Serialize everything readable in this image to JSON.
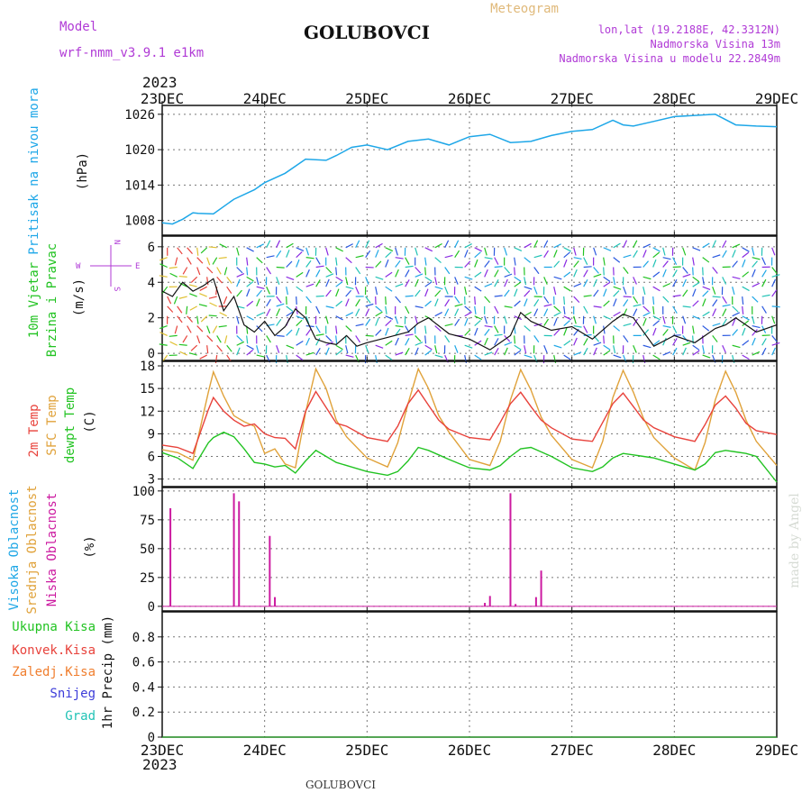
{
  "header": {
    "model_label": "Model",
    "model_name": "wrf-nmm_v3.9.1 e1km",
    "station": "GOLUBOVCI",
    "product": "Meteogram",
    "lonlat": "lon,lat (19.2188E, 42.3312N)",
    "elevation": "Nadmorska Visina 13m",
    "model_elevation": "Nadmorska Visina u modelu 22.2849m",
    "year": "2023"
  },
  "footer": {
    "station": "GOLUBOVCI",
    "credit": "made by Angel"
  },
  "colors": {
    "pressure": "#1ea7e8",
    "temp2m": "#e8423b",
    "sfc": "#e0a23a",
    "dewpt": "#22c322",
    "cloud_high": "#1fa7e6",
    "cloud_mid": "#e0a23a",
    "cloud_low": "#cc1aa0",
    "label_purple": "#b03ad6",
    "precip_total": "#22c322",
    "precip_conv": "#e8423b",
    "precip_frz": "#f07e2e",
    "precip_snow": "#3c3cd9",
    "precip_grad": "#22c3b6"
  },
  "compass": {
    "n": "N",
    "s": "S",
    "w": "W",
    "e": "E"
  },
  "chart_data": [
    {
      "type": "line",
      "x_ticks": [
        "23DEC",
        "24DEC",
        "25DEC",
        "26DEC",
        "27DEC",
        "28DEC",
        "29DEC"
      ],
      "ylabel": "(hPa)",
      "side_label": "Pritisak na nivou mora",
      "ylim": [
        1005.5,
        1027.5
      ],
      "yticks": [
        1008,
        1014,
        1020,
        1026
      ],
      "series": [
        {
          "name": "Pritisak na nivou mora",
          "x": [
            0,
            0.1,
            0.2,
            0.3,
            0.35,
            0.5,
            0.7,
            0.9,
            1.0,
            1.2,
            1.4,
            1.6,
            1.7,
            1.85,
            2.0,
            2.2,
            2.4,
            2.6,
            2.8,
            3.0,
            3.2,
            3.4,
            3.6,
            3.8,
            4.0,
            4.2,
            4.4,
            4.5,
            4.6,
            4.8,
            5.0,
            5.2,
            5.4,
            5.6,
            5.8,
            6.0
          ],
          "y": [
            1007.6,
            1007.4,
            1008.2,
            1009.3,
            1009.2,
            1009.1,
            1011.6,
            1013.2,
            1014.4,
            1016.0,
            1018.4,
            1018.2,
            1019.0,
            1020.4,
            1020.8,
            1020.0,
            1021.4,
            1021.8,
            1020.8,
            1022.2,
            1022.6,
            1021.2,
            1021.4,
            1022.4,
            1023.1,
            1023.4,
            1025.0,
            1024.2,
            1024.0,
            1024.8,
            1025.6,
            1025.8,
            1026.0,
            1024.2,
            1024.0,
            1023.9
          ]
        }
      ]
    },
    {
      "type": "line",
      "side_label_1": "10m Vjetar",
      "side_label_2": "Brzina i Pravac",
      "ylabel": "(m/s)",
      "ylim": [
        -0.4,
        6.6
      ],
      "yticks": [
        0,
        2,
        4,
        6
      ],
      "series": [
        {
          "name": "10m Vjetar",
          "x": [
            0,
            0.1,
            0.2,
            0.3,
            0.4,
            0.5,
            0.6,
            0.7,
            0.8,
            0.9,
            1.0,
            1.1,
            1.2,
            1.3,
            1.4,
            1.5,
            1.6,
            1.7,
            1.8,
            1.9,
            2.0,
            2.2,
            2.4,
            2.5,
            2.6,
            2.8,
            3.0,
            3.2,
            3.4,
            3.5,
            3.6,
            3.8,
            4.0,
            4.2,
            4.4,
            4.5,
            4.6,
            4.8,
            5.0,
            5.2,
            5.4,
            5.5,
            5.6,
            5.8,
            6.0
          ],
          "y": [
            3.5,
            3.2,
            4.0,
            3.5,
            3.8,
            4.2,
            2.4,
            3.2,
            1.6,
            1.2,
            1.8,
            1.0,
            1.5,
            2.5,
            2.0,
            0.8,
            0.6,
            0.5,
            1.0,
            0.4,
            0.6,
            0.9,
            1.2,
            1.7,
            2.0,
            1.1,
            0.8,
            0.2,
            1.0,
            2.3,
            1.8,
            1.3,
            1.5,
            0.8,
            1.8,
            2.2,
            2.0,
            0.4,
            1.0,
            0.6,
            1.4,
            1.6,
            2.0,
            1.2,
            1.6
          ]
        }
      ]
    },
    {
      "type": "line",
      "side_label_1": "2m Temp",
      "side_label_2": "SFC Temp",
      "side_label_3": "dewpt Temp",
      "ylabel": "(C)",
      "ylim": [
        2,
        18.6
      ],
      "yticks": [
        3,
        6,
        9,
        12,
        15,
        18
      ],
      "series": [
        {
          "name": "2m Temp",
          "x": [
            0,
            0.15,
            0.3,
            0.45,
            0.5,
            0.6,
            0.7,
            0.8,
            0.9,
            1.0,
            1.1,
            1.2,
            1.3,
            1.4,
            1.5,
            1.6,
            1.7,
            1.8,
            2.0,
            2.2,
            2.3,
            2.4,
            2.5,
            2.6,
            2.7,
            2.8,
            3.0,
            3.2,
            3.3,
            3.4,
            3.5,
            3.6,
            3.7,
            3.8,
            4.0,
            4.2,
            4.3,
            4.4,
            4.5,
            4.6,
            4.7,
            4.8,
            5.0,
            5.2,
            5.3,
            5.4,
            5.5,
            5.6,
            5.7,
            5.8,
            6.0
          ],
          "y": [
            7.5,
            7.2,
            6.4,
            12.2,
            13.8,
            12.0,
            10.8,
            10.0,
            10.3,
            9.0,
            8.5,
            8.4,
            7.0,
            12.0,
            14.6,
            12.5,
            10.4,
            10.0,
            8.5,
            8.0,
            10.0,
            13.0,
            14.8,
            12.8,
            10.8,
            9.6,
            8.5,
            8.2,
            10.5,
            13.0,
            14.5,
            12.6,
            10.8,
            9.8,
            8.3,
            8.0,
            10.5,
            13.0,
            14.4,
            12.6,
            10.8,
            9.8,
            8.6,
            8.0,
            10.2,
            12.8,
            14.0,
            12.4,
            10.4,
            9.4,
            8.9
          ]
        },
        {
          "name": "SFC Temp",
          "x": [
            0,
            0.15,
            0.3,
            0.45,
            0.5,
            0.6,
            0.7,
            0.8,
            0.9,
            1.0,
            1.1,
            1.2,
            1.3,
            1.4,
            1.5,
            1.6,
            1.7,
            1.8,
            2.0,
            2.2,
            2.3,
            2.4,
            2.5,
            2.6,
            2.7,
            2.8,
            3.0,
            3.2,
            3.3,
            3.4,
            3.5,
            3.6,
            3.7,
            3.8,
            4.0,
            4.2,
            4.3,
            4.4,
            4.5,
            4.6,
            4.7,
            4.8,
            5.0,
            5.2,
            5.3,
            5.4,
            5.5,
            5.6,
            5.7,
            5.8,
            6.0
          ],
          "y": [
            6.9,
            6.5,
            5.5,
            14.5,
            17.2,
            14.0,
            11.4,
            10.6,
            10.0,
            6.4,
            7.0,
            5.0,
            4.5,
            11.8,
            17.6,
            15.0,
            10.8,
            8.6,
            5.8,
            4.6,
            7.8,
            13.0,
            17.6,
            15.0,
            11.4,
            9.2,
            5.6,
            4.8,
            8.0,
            13.5,
            17.5,
            14.8,
            11.2,
            8.8,
            5.6,
            4.5,
            8.0,
            13.8,
            17.4,
            14.5,
            11.0,
            8.5,
            5.8,
            4.2,
            7.8,
            13.5,
            17.3,
            14.5,
            10.8,
            8.0,
            4.8
          ]
        },
        {
          "name": "dewpt Temp",
          "x": [
            0,
            0.15,
            0.3,
            0.45,
            0.5,
            0.6,
            0.7,
            0.8,
            0.9,
            1.0,
            1.1,
            1.2,
            1.3,
            1.4,
            1.5,
            1.6,
            1.7,
            1.8,
            2.0,
            2.2,
            2.3,
            2.4,
            2.5,
            2.6,
            2.7,
            2.8,
            3.0,
            3.2,
            3.3,
            3.4,
            3.5,
            3.6,
            3.7,
            3.8,
            4.0,
            4.2,
            4.3,
            4.4,
            4.5,
            4.6,
            4.7,
            4.8,
            5.0,
            5.2,
            5.3,
            5.4,
            5.5,
            5.6,
            5.7,
            5.8,
            6.0
          ],
          "y": [
            6.5,
            5.8,
            4.4,
            7.8,
            8.5,
            9.2,
            8.6,
            7.0,
            5.2,
            5.0,
            4.6,
            4.8,
            3.8,
            5.4,
            6.8,
            6.0,
            5.2,
            4.8,
            4.0,
            3.5,
            4.0,
            5.4,
            7.2,
            6.8,
            6.2,
            5.6,
            4.5,
            4.2,
            4.8,
            6.0,
            7.0,
            7.2,
            6.6,
            6.0,
            4.5,
            4.0,
            4.6,
            5.8,
            6.4,
            6.2,
            6.0,
            5.8,
            5.0,
            4.2,
            5.0,
            6.5,
            6.8,
            6.6,
            6.4,
            6.0,
            2.6
          ]
        }
      ]
    },
    {
      "type": "bar",
      "side_label_1": "Visoka Oblacnost",
      "side_label_2": "Srednja Oblacnost",
      "side_label_3": "Niska Oblacnost",
      "ylabel": "(%)",
      "ylim": [
        -4,
        103
      ],
      "yticks": [
        0,
        25,
        50,
        75,
        100
      ],
      "series": [
        {
          "name": "Niska Oblacnost",
          "x": [
            0.08,
            0.7,
            0.75,
            1.05,
            1.1,
            3.15,
            3.2,
            3.4,
            3.45,
            3.65,
            3.7
          ],
          "y": [
            85,
            98,
            91,
            61,
            8,
            3,
            9,
            98,
            2,
            8,
            31
          ]
        }
      ]
    },
    {
      "type": "line",
      "side_labels": [
        "Ukupna Kisa",
        "Konvek.Kisa",
        "Zaledj.Kisa",
        "Snijeg",
        "Grad"
      ],
      "ylabel": "1hr Precip (mm)",
      "ylim": [
        0,
        1.0
      ],
      "yticks": [
        0,
        0.2,
        0.4,
        0.6,
        0.8
      ],
      "series": [
        {
          "name": "Ukupna Kisa",
          "x": [
            0,
            6
          ],
          "y": [
            0,
            0
          ]
        }
      ]
    }
  ]
}
